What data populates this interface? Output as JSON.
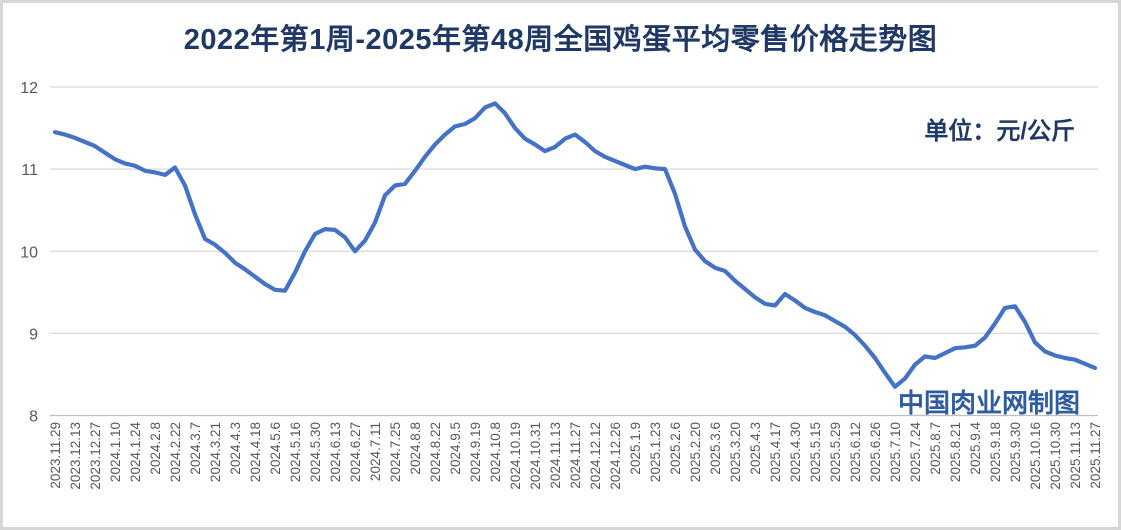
{
  "header": {
    "title": "2022年第1周-2025年第48周全国鸡蛋平均零售价格走势图"
  },
  "annotations": {
    "unit_label": "单位：元/公斤",
    "watermark": "中国肉业网制图"
  },
  "colors": {
    "line": "#4472C4",
    "title": "#1F3864",
    "unit_label": "#1F3864",
    "watermark": "#2E5C9E",
    "axis_text": "#595959",
    "gridline": "#D9D9D9",
    "axis_line": "#BFBFBF",
    "frame_border": "#D6D6D6",
    "background": "#FFFFFF"
  },
  "chart_data": {
    "type": "line",
    "title": "2022年第1周-2025年第48周全国鸡蛋平均零售价格走势图",
    "ylabel": "",
    "xlabel": "",
    "unit": "元/公斤",
    "ylim": [
      8,
      12
    ],
    "yticks": [
      8,
      9,
      10,
      11,
      12
    ],
    "grid": "horizontal",
    "legend_position": "none",
    "label_every_n_points": 2,
    "categories": [
      "2023.11.29",
      "2023.12.13",
      "2023.12.27",
      "2024.1.10",
      "2024.1.24",
      "2024.2.8",
      "2024.2.22",
      "2024.3.7",
      "2024.3.21",
      "2024.4.3",
      "2024.4.18",
      "2024.5.6",
      "2024.5.16",
      "2024.5.30",
      "2024.6.13",
      "2024.6.27",
      "2024.7.11",
      "2024.7.25",
      "2024.8.8",
      "2024.8.22",
      "2024.9.5",
      "2024.9.19",
      "2024.10.8",
      "2024.10.19",
      "2024.10.31",
      "2024.11.13",
      "2024.11.27",
      "2024.12.12",
      "2024.12.26",
      "2025.1.9",
      "2025.1.23",
      "2025.2.6",
      "2025.2.20",
      "2025.3.6",
      "2025.3.20",
      "2025.4.3",
      "2025.4.17",
      "2025.4.30",
      "2025.5.15",
      "2025.5.29",
      "2025.6.12",
      "2025.6.26",
      "2025.7.10",
      "2025.7.24",
      "2025.8.7",
      "2025.8.21",
      "2025.9.4",
      "2025.9.18",
      "2025.9.30",
      "2025.10.16",
      "2025.10.30",
      "2025.11.13",
      "2025.11.27"
    ],
    "values": [
      11.45,
      11.42,
      11.38,
      11.33,
      11.28,
      11.2,
      11.12,
      11.07,
      11.04,
      10.98,
      10.96,
      10.93,
      11.02,
      10.8,
      10.45,
      10.15,
      10.08,
      9.98,
      9.86,
      9.78,
      9.69,
      9.6,
      9.53,
      9.52,
      9.74,
      10.0,
      10.21,
      10.27,
      10.26,
      10.17,
      10.0,
      10.13,
      10.35,
      10.68,
      10.8,
      10.82,
      10.98,
      11.15,
      11.3,
      11.42,
      11.52,
      11.55,
      11.62,
      11.75,
      11.8,
      11.68,
      11.5,
      11.37,
      11.3,
      11.22,
      11.27,
      11.37,
      11.42,
      11.33,
      11.22,
      11.15,
      11.1,
      11.05,
      11.0,
      11.03,
      11.01,
      11.0,
      10.7,
      10.3,
      10.02,
      9.88,
      9.8,
      9.76,
      9.64,
      9.54,
      9.44,
      9.36,
      9.34,
      9.48,
      9.4,
      9.31,
      9.26,
      9.22,
      9.15,
      9.08,
      8.98,
      8.85,
      8.7,
      8.52,
      8.35,
      8.45,
      8.62,
      8.72,
      8.7,
      8.76,
      8.82,
      8.83,
      8.85,
      8.95,
      9.12,
      9.31,
      9.33,
      9.14,
      8.89,
      8.78,
      8.73,
      8.7,
      8.68,
      8.63,
      8.58
    ]
  }
}
